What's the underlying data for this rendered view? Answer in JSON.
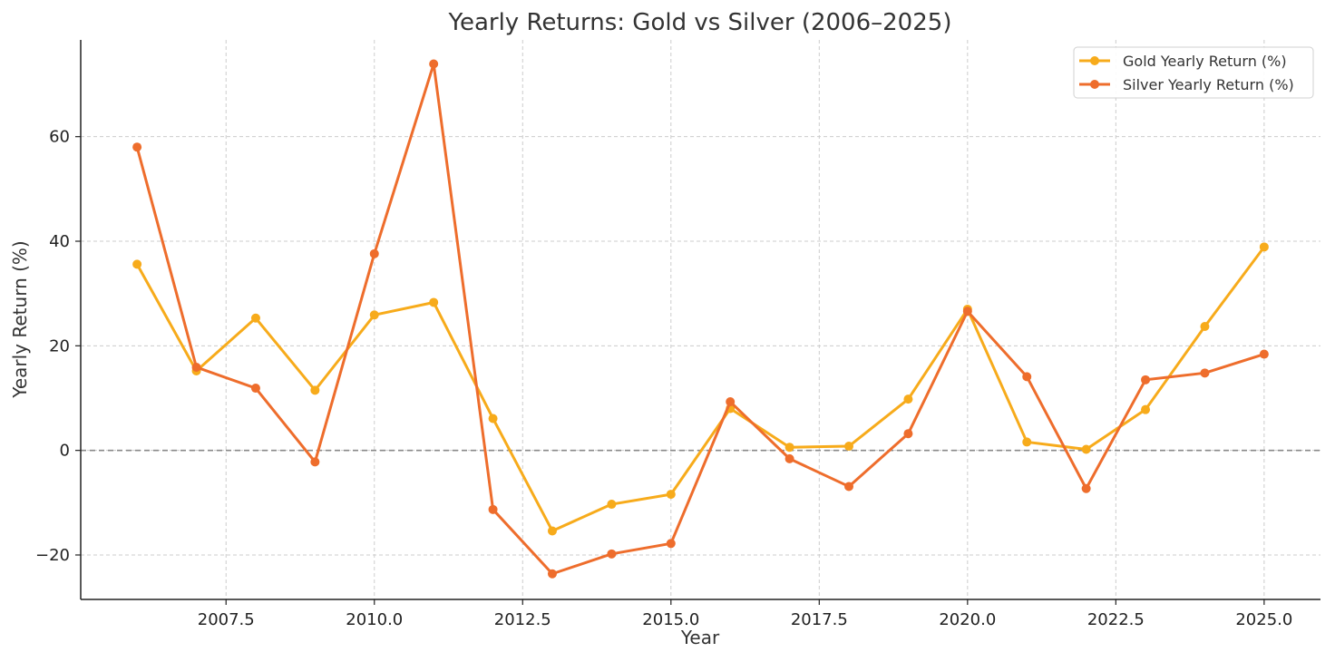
{
  "chart_data": {
    "type": "line",
    "title": "Yearly Returns: Gold vs Silver (2006–2025)",
    "xlabel": "Year",
    "ylabel": "Yearly Return (%)",
    "xlim": [
      2005.05,
      2025.95
    ],
    "ylim": [
      -28.5,
      78.5
    ],
    "x_ticks": [
      2007.5,
      2010.0,
      2012.5,
      2015.0,
      2017.5,
      2020.0,
      2022.5,
      2025.0
    ],
    "x_tick_labels": [
      "2007.5",
      "2010.0",
      "2012.5",
      "2015.0",
      "2017.5",
      "2020.0",
      "2022.5",
      "2025.0"
    ],
    "y_ticks": [
      -20,
      0,
      20,
      40,
      60
    ],
    "y_tick_labels": [
      "−20",
      "0",
      "20",
      "40",
      "60"
    ],
    "grid": true,
    "zero_reference_line": true,
    "legend_position": "top-right",
    "x": [
      2006,
      2007,
      2008,
      2009,
      2010,
      2011,
      2012,
      2013,
      2014,
      2015,
      2016,
      2017,
      2018,
      2019,
      2020,
      2021,
      2022,
      2023,
      2024,
      2025
    ],
    "series": [
      {
        "name": "Gold Yearly Return (%)",
        "color": "#f7ab1b",
        "values": [
          35.6,
          15.2,
          25.3,
          11.5,
          25.9,
          28.3,
          6.1,
          -15.4,
          -10.3,
          -8.4,
          8.0,
          0.6,
          0.8,
          9.8,
          27.0,
          1.6,
          0.2,
          7.8,
          23.7,
          38.9
        ]
      },
      {
        "name": "Silver Yearly Return (%)",
        "color": "#ee6d2c",
        "values": [
          58.0,
          15.9,
          11.9,
          -2.2,
          37.6,
          73.9,
          -11.3,
          -23.6,
          -19.8,
          -17.8,
          9.3,
          -1.6,
          -6.9,
          3.2,
          26.6,
          14.1,
          -7.3,
          13.5,
          14.8,
          18.4
        ]
      }
    ]
  }
}
